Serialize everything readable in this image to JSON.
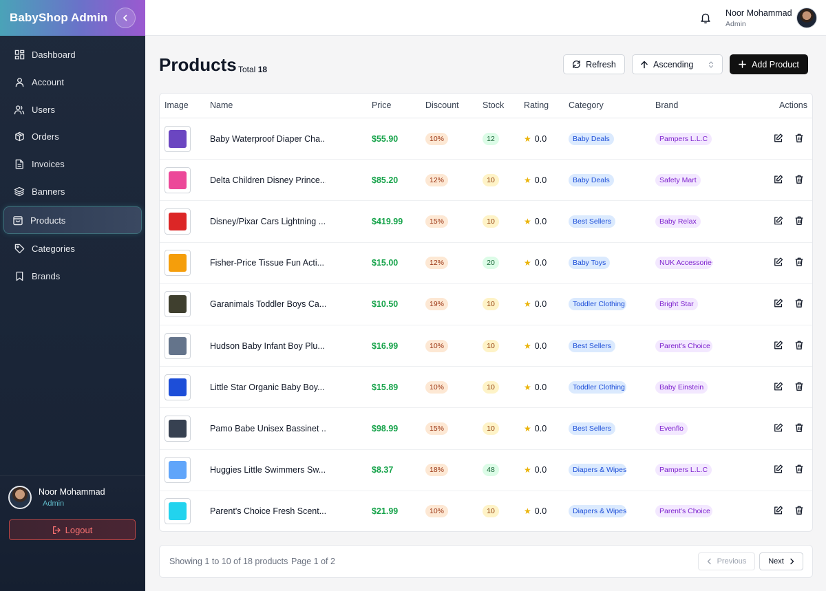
{
  "sidebar": {
    "brand_title": "BabyShop Admin",
    "items": [
      {
        "label": "Dashboard",
        "icon": "dashboard-icon"
      },
      {
        "label": "Account",
        "icon": "user-icon"
      },
      {
        "label": "Users",
        "icon": "users-icon"
      },
      {
        "label": "Orders",
        "icon": "box-icon"
      },
      {
        "label": "Invoices",
        "icon": "file-icon"
      },
      {
        "label": "Banners",
        "icon": "layers-icon"
      },
      {
        "label": "Products",
        "icon": "shopping-bag-icon",
        "active": true
      },
      {
        "label": "Categories",
        "icon": "tag-icon"
      },
      {
        "label": "Brands",
        "icon": "bookmark-icon"
      }
    ],
    "user": {
      "name": "Noor Mohammad",
      "role": "Admin"
    },
    "logout_label": "Logout"
  },
  "topbar": {
    "user_name": "Noor Mohammad",
    "user_role": "Admin"
  },
  "page": {
    "title": "Products",
    "total_label": "Total",
    "total_count": "18"
  },
  "toolbar": {
    "refresh_label": "Refresh",
    "sort_label": "Ascending",
    "add_label": "Add Product"
  },
  "table": {
    "headers": {
      "image": "Image",
      "name": "Name",
      "price": "Price",
      "discount": "Discount",
      "stock": "Stock",
      "rating": "Rating",
      "category": "Category",
      "brand": "Brand",
      "actions": "Actions"
    },
    "rows": [
      {
        "name": "Baby Waterproof Diaper Cha...",
        "price": "$55.90",
        "discount": "10%",
        "stock": "12",
        "rating": "0.0",
        "category": "Baby Deals",
        "brand": "Pampers L.L.C",
        "thumb_color": "#6b46c1"
      },
      {
        "name": "Delta Children Disney Prince...",
        "price": "$85.20",
        "discount": "12%",
        "stock": "10",
        "rating": "0.0",
        "category": "Baby Deals",
        "brand": "Safety Mart",
        "thumb_color": "#ec4899"
      },
      {
        "name": "Disney/Pixar Cars Lightning ...",
        "price": "$419.99",
        "discount": "15%",
        "stock": "10",
        "rating": "0.0",
        "category": "Best Sellers",
        "brand": "Baby Relax",
        "thumb_color": "#dc2626"
      },
      {
        "name": "Fisher-Price Tissue Fun Acti...",
        "price": "$15.00",
        "discount": "12%",
        "stock": "20",
        "rating": "0.0",
        "category": "Baby Toys",
        "brand": "NUK Accessories",
        "thumb_color": "#f59e0b"
      },
      {
        "name": "Garanimals Toddler Boys Ca...",
        "price": "$10.50",
        "discount": "19%",
        "stock": "10",
        "rating": "0.0",
        "category": "Toddler Clothing",
        "brand": "Bright Star",
        "thumb_color": "#3f3f2e"
      },
      {
        "name": "Hudson Baby Infant Boy Plu...",
        "price": "$16.99",
        "discount": "10%",
        "stock": "10",
        "rating": "0.0",
        "category": "Best Sellers",
        "brand": "Parent's Choice",
        "thumb_color": "#64748b"
      },
      {
        "name": "Little Star Organic Baby Boy...",
        "price": "$15.89",
        "discount": "10%",
        "stock": "10",
        "rating": "0.0",
        "category": "Toddler Clothing",
        "brand": "Baby Einstein",
        "thumb_color": "#1d4ed8"
      },
      {
        "name": "Pamo Babe Unisex Bassinet ...",
        "price": "$98.99",
        "discount": "15%",
        "stock": "10",
        "rating": "0.0",
        "category": "Best Sellers",
        "brand": "Evenflo",
        "thumb_color": "#374151"
      },
      {
        "name": "Huggies Little Swimmers Sw...",
        "price": "$8.37",
        "discount": "18%",
        "stock": "48",
        "rating": "0.0",
        "category": "Diapers & Wipes",
        "brand": "Pampers L.L.C",
        "thumb_color": "#60a5fa"
      },
      {
        "name": "Parent's Choice Fresh Scent...",
        "price": "$21.99",
        "discount": "10%",
        "stock": "10",
        "rating": "0.0",
        "category": "Diapers & Wipes",
        "brand": "Parent's Choice",
        "thumb_color": "#22d3ee"
      }
    ]
  },
  "pagination": {
    "showing": "Showing 1 to 10 of 18 products",
    "page_info": "Page 1 of 2",
    "previous_label": "Previous",
    "next_label": "Next"
  }
}
